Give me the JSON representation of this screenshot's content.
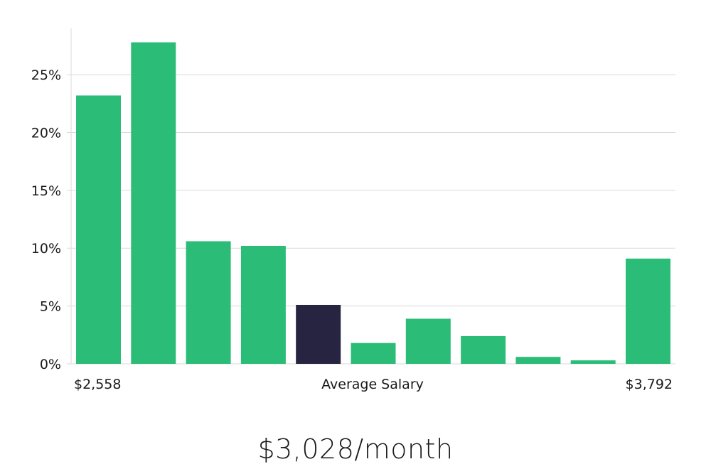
{
  "chart_data": {
    "type": "bar",
    "title": "",
    "xlabel": "Average Salary",
    "ylabel": "",
    "x_min_label": "$2,558",
    "x_max_label": "$3,792",
    "ylim": [
      0,
      29
    ],
    "yticks": [
      0,
      5,
      10,
      15,
      20,
      25
    ],
    "ytick_labels": [
      "0%",
      "5%",
      "10%",
      "15%",
      "20%",
      "25%"
    ],
    "grid": true,
    "values": [
      23.2,
      27.8,
      10.6,
      10.2,
      5.1,
      1.8,
      3.9,
      2.4,
      0.6,
      0.3,
      9.1
    ],
    "highlight_index": 4,
    "colors": {
      "bar": "#2bbd77",
      "highlight": "#272442"
    }
  },
  "summary": {
    "value": "$3,028/month"
  }
}
